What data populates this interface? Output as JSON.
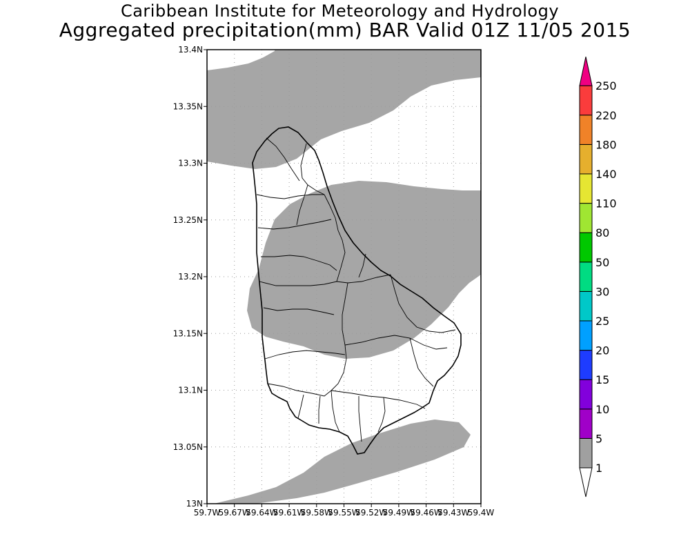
{
  "title": {
    "line1": "Caribbean Institute for Meteorology and Hydrology",
    "line2": "Aggregated precipitation(mm) BAR Valid 01Z 11/05 2015"
  },
  "map": {
    "lat_labels": [
      "13.4N",
      "13.35N",
      "13.3N",
      "13.25N",
      "13.2N",
      "13.15N",
      "13.1N",
      "13.05N",
      "13N"
    ],
    "lon_labels": [
      "59.7W",
      "59.67W",
      "59.64W",
      "59.61W",
      "59.58W",
      "59.55W",
      "59.52W",
      "59.49W",
      "59.46W",
      "59.43W",
      "59.4W"
    ],
    "lat_range": [
      13.0,
      13.4
    ],
    "lon_range": [
      -59.7,
      -59.4
    ],
    "grid": "dotted",
    "rain_fill_color": "#a6a6a6"
  },
  "colorbar": {
    "levels": [
      "1",
      "5",
      "10",
      "15",
      "20",
      "25",
      "30",
      "50",
      "80",
      "110",
      "140",
      "180",
      "220",
      "250"
    ],
    "colors": [
      "#ffffff",
      "#a0a0a0",
      "#a000c8",
      "#8200dc",
      "#1e3cff",
      "#00a0ff",
      "#00c8c8",
      "#00dc82",
      "#00c800",
      "#a0e632",
      "#e6e632",
      "#e6af2d",
      "#f08228",
      "#fa3c3c",
      "#f00082"
    ]
  }
}
